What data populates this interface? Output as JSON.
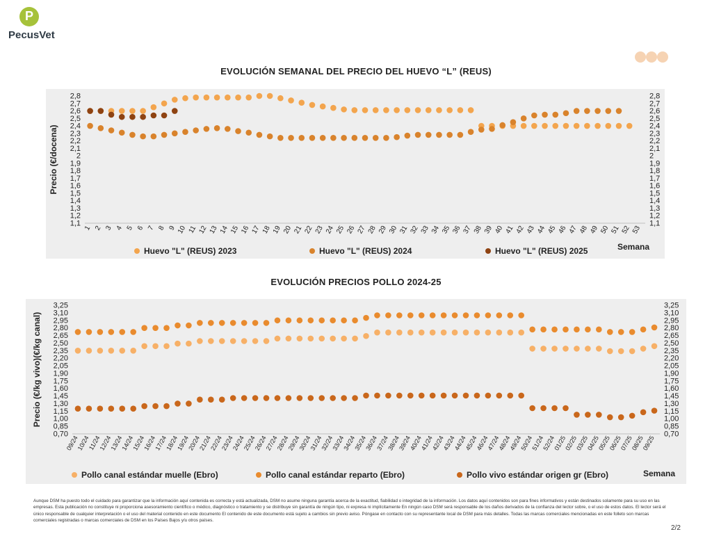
{
  "brand": {
    "name": "PecusVet",
    "mark": "P",
    "color": "#a6c23a"
  },
  "charts": [
    {
      "title": "EVOLUCIÓN SEMANAL DEL PRECIO DEL HUEVO “L” (REUS)",
      "ylabel": "Precio (€/docena)",
      "xlabel": "Semana",
      "ylim": [
        1.1,
        2.8
      ],
      "yticks": [
        "1,1",
        "1,2",
        "1,3",
        "1,4",
        "1,5",
        "1,6",
        "1,7",
        "1,8",
        "1,9",
        "2",
        "2,1",
        "2,2",
        "2,3",
        "2,4",
        "2,5",
        "2,6",
        "2,7",
        "2,8"
      ],
      "categories": [
        "1",
        "2",
        "3",
        "4",
        "5",
        "6",
        "7",
        "8",
        "9",
        "10",
        "11",
        "12",
        "13",
        "14",
        "15",
        "16",
        "17",
        "18",
        "19",
        "20",
        "21",
        "22",
        "23",
        "24",
        "25",
        "26",
        "27",
        "28",
        "29",
        "30",
        "31",
        "32",
        "33",
        "34",
        "35",
        "36",
        "37",
        "38",
        "39",
        "40",
        "41",
        "42",
        "43",
        "44",
        "45",
        "46",
        "47",
        "48",
        "49",
        "50",
        "51",
        "52",
        "53"
      ]
    },
    {
      "title": "EVOLUCIÓN PRECIOS POLLO 2024-25",
      "ylabel": "Precio (€/kg vivo)(€/kg canal)",
      "xlabel": "Semana",
      "ylim": [
        0.7,
        3.25
      ],
      "yticks": [
        "0,70",
        "0,85",
        "1,00",
        "1,15",
        "1,30",
        "1,45",
        "1,60",
        "1,75",
        "1,90",
        "2,05",
        "2,20",
        "2,35",
        "2,50",
        "2,65",
        "2,80",
        "2,95",
        "3,10",
        "3,25"
      ],
      "categories": [
        "09/24",
        "10/24",
        "11/24",
        "12/24",
        "13/24",
        "14/24",
        "15/24",
        "16/24",
        "17/24",
        "18/24",
        "19/24",
        "20/24",
        "21/24",
        "22/24",
        "23/24",
        "24/24",
        "25/24",
        "26/24",
        "27/24",
        "28/24",
        "29/24",
        "30/24",
        "31/24",
        "32/24",
        "33/24",
        "34/24",
        "35/24",
        "36/24",
        "37/24",
        "38/24",
        "39/24",
        "40/24",
        "41/24",
        "42/24",
        "43/24",
        "44/24",
        "45/24",
        "46/24",
        "47/24",
        "48/24",
        "49/24",
        "50/24",
        "51/24",
        "52/24",
        "01/25",
        "02/25",
        "03/25",
        "04/25",
        "05/25",
        "06/25",
        "07/25",
        "08/25",
        "09/25"
      ]
    }
  ],
  "chart_data": [
    {
      "type": "scatter",
      "title": "EVOLUCIÓN SEMANAL DEL PRECIO DEL HUEVO “L” (REUS)",
      "xlabel": "Semana",
      "ylabel": "Precio (€/docena)",
      "ylim": [
        1.1,
        2.8
      ],
      "legend": "bottom",
      "grid": false,
      "x": [
        1,
        2,
        3,
        4,
        5,
        6,
        7,
        8,
        9,
        10,
        11,
        12,
        13,
        14,
        15,
        16,
        17,
        18,
        19,
        20,
        21,
        22,
        23,
        24,
        25,
        26,
        27,
        28,
        29,
        30,
        31,
        32,
        33,
        34,
        35,
        36,
        37,
        38,
        39,
        40,
        41,
        42,
        43,
        44,
        45,
        46,
        47,
        48,
        49,
        50,
        51,
        52,
        53
      ],
      "series": [
        {
          "name": "Huevo \"L\" (REUS) 2023",
          "color": "#f3a54e",
          "values": [
            2.6,
            2.6,
            2.6,
            2.6,
            2.6,
            2.6,
            2.65,
            2.7,
            2.75,
            2.77,
            2.78,
            2.78,
            2.78,
            2.78,
            2.78,
            2.78,
            2.8,
            2.8,
            2.77,
            2.74,
            2.71,
            2.68,
            2.66,
            2.64,
            2.62,
            2.61,
            2.61,
            2.61,
            2.61,
            2.61,
            2.61,
            2.61,
            2.61,
            2.61,
            2.61,
            2.61,
            2.61,
            2.4,
            2.4,
            2.4,
            2.4,
            2.4,
            2.4,
            2.4,
            2.4,
            2.4,
            2.4,
            2.4,
            2.4,
            2.4,
            2.4,
            2.4,
            null
          ]
        },
        {
          "name": "Huevo \"L\" (REUS) 2024",
          "color": "#d9832c",
          "values": [
            2.4,
            2.37,
            2.34,
            2.31,
            2.28,
            2.26,
            2.26,
            2.28,
            2.3,
            2.32,
            2.34,
            2.36,
            2.37,
            2.36,
            2.33,
            2.31,
            2.28,
            2.26,
            2.24,
            2.24,
            2.24,
            2.24,
            2.24,
            2.24,
            2.24,
            2.24,
            2.24,
            2.24,
            2.24,
            2.25,
            2.27,
            2.28,
            2.28,
            2.28,
            2.28,
            2.28,
            2.32,
            2.35,
            2.36,
            2.41,
            2.45,
            2.5,
            2.54,
            2.55,
            2.55,
            2.57,
            2.6,
            2.6,
            2.6,
            2.6,
            2.6,
            null,
            null
          ]
        },
        {
          "name": "Huevo \"L\" (REUS) 2025",
          "color": "#8e4312",
          "values": [
            2.6,
            2.6,
            2.55,
            2.52,
            2.52,
            2.52,
            2.54,
            2.54,
            2.6,
            null,
            null,
            null,
            null,
            null,
            null,
            null,
            null,
            null,
            null,
            null,
            null,
            null,
            null,
            null,
            null,
            null,
            null,
            null,
            null,
            null,
            null,
            null,
            null,
            null,
            null,
            null,
            null,
            null,
            null,
            null,
            null,
            null,
            null,
            null,
            null,
            null,
            null,
            null,
            null,
            null,
            null,
            null,
            null
          ]
        }
      ]
    },
    {
      "type": "scatter",
      "title": "EVOLUCIÓN PRECIOS POLLO 2024-25",
      "xlabel": "Semana",
      "ylabel": "Precio (€/kg vivo)(€/kg canal)",
      "ylim": [
        0.7,
        3.25
      ],
      "legend": "bottom",
      "grid": false,
      "series": [
        {
          "name": "Pollo canal estándar muelle (Ebro)",
          "color": "#f7b067",
          "values": [
            2.35,
            2.35,
            2.35,
            2.35,
            2.35,
            2.35,
            2.44,
            2.44,
            2.44,
            2.49,
            2.49,
            2.54,
            2.54,
            2.54,
            2.54,
            2.54,
            2.54,
            2.54,
            2.59,
            2.59,
            2.59,
            2.59,
            2.59,
            2.59,
            2.59,
            2.59,
            2.64,
            2.71,
            2.71,
            2.71,
            2.71,
            2.71,
            2.71,
            2.71,
            2.71,
            2.71,
            2.71,
            2.71,
            2.71,
            2.71,
            2.71,
            2.39,
            2.39,
            2.39,
            2.39,
            2.39,
            2.39,
            2.39,
            2.34,
            2.34,
            2.34,
            2.39,
            2.44
          ]
        },
        {
          "name": "Pollo canal estándar reparto (Ebro)",
          "color": "#e98b2e",
          "values": [
            2.72,
            2.72,
            2.72,
            2.72,
            2.72,
            2.72,
            2.8,
            2.8,
            2.8,
            2.85,
            2.85,
            2.9,
            2.9,
            2.9,
            2.9,
            2.9,
            2.9,
            2.9,
            2.95,
            2.95,
            2.95,
            2.95,
            2.95,
            2.95,
            2.95,
            2.95,
            3.0,
            3.05,
            3.05,
            3.05,
            3.05,
            3.05,
            3.05,
            3.05,
            3.05,
            3.05,
            3.05,
            3.05,
            3.05,
            3.05,
            3.05,
            2.77,
            2.77,
            2.77,
            2.77,
            2.77,
            2.77,
            2.77,
            2.72,
            2.72,
            2.72,
            2.77,
            2.81
          ]
        },
        {
          "name": "Pollo vivo estándar origen gr (Ebro)",
          "color": "#c9671b",
          "values": [
            1.2,
            1.2,
            1.2,
            1.2,
            1.2,
            1.2,
            1.25,
            1.25,
            1.25,
            1.3,
            1.3,
            1.38,
            1.38,
            1.38,
            1.41,
            1.41,
            1.41,
            1.41,
            1.41,
            1.41,
            1.41,
            1.41,
            1.41,
            1.41,
            1.41,
            1.41,
            1.46,
            1.46,
            1.46,
            1.46,
            1.46,
            1.46,
            1.46,
            1.46,
            1.46,
            1.46,
            1.46,
            1.46,
            1.46,
            1.46,
            1.46,
            1.21,
            1.21,
            1.21,
            1.21,
            1.08,
            1.08,
            1.08,
            1.03,
            1.03,
            1.06,
            1.13,
            1.16
          ]
        }
      ]
    }
  ],
  "disclaimer": "Aunque DSM ha puesto todo el cuidado para garantizar que la información aquí contenida es correcta y está actualizada, DSM no asume ninguna garantía acerca de la exactitud, fiabilidad o integridad de la información. Los datos aquí contenidos son para fines informativos y están destinados solamente para su uso en las empresas. Esta publicación no constituye ni proporciona asesoramiento científico o médico, diagnóstico o tratamiento y se distribuye sin garantía de ningún tipo, ni expresa ni implícitamente En ningún caso DSM será responsable de los daños derivados de la confianza del lector sobre, o el uso de estos datos. El lector será el único responsable de cualquier interpretación o el uso del material contenido en este documento El contenido de este documento está sujeto a cambios sin previo aviso. Póngase en contacto con su representante local de DSM para más detalles. Todas las marcas comerciales mencionadas en este folleto son marcas comerciales registradas o marcas comerciales de DSM en los Países Bajos y/u otros países.",
  "page": "2/2"
}
